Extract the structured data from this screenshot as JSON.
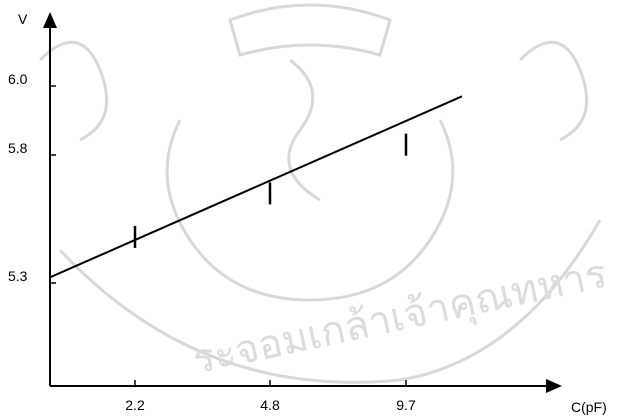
{
  "chart_data": {
    "type": "line",
    "ylabel": "V",
    "xlabel": "C(pF)",
    "x_ticks": [
      "2.2",
      "4.8",
      "9.7"
    ],
    "y_ticks": [
      "5.3",
      "5.8",
      "6.0"
    ],
    "series": [
      {
        "x": [
          "2.2",
          "4.8",
          "9.7"
        ],
        "values": [
          5.48,
          5.65,
          5.83
        ],
        "error_bars": true
      }
    ],
    "fit_line": {
      "from": 5.33,
      "to": 5.97
    },
    "grid": false,
    "legend": "none"
  },
  "watermark": {
    "text": "ระจอมเกล้าเจ้าคุณทหาร",
    "color": "#dcdcdc"
  }
}
